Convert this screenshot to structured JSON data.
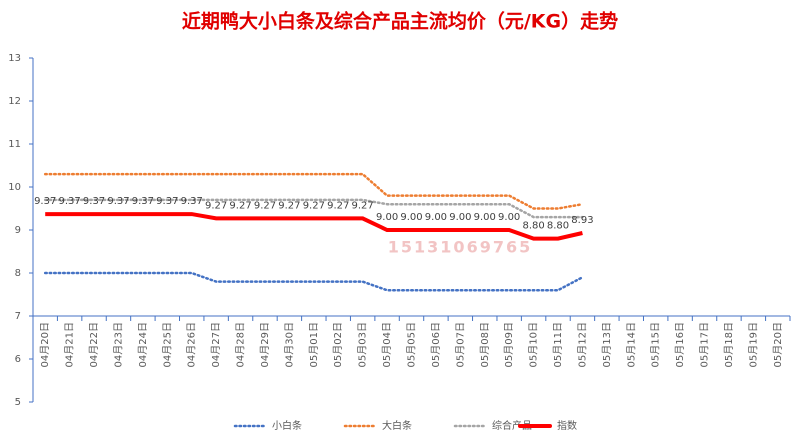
{
  "chart_data": {
    "type": "line",
    "title": "近期鸭大小白条及综合产品主流均价（元/KG）走势",
    "watermark": "15131069765",
    "categories": [
      "04月20日",
      "04月21日",
      "04月22日",
      "04月23日",
      "04月24日",
      "04月25日",
      "04月26日",
      "04月27日",
      "04月28日",
      "04月29日",
      "04月30日",
      "05月01日",
      "05月02日",
      "05月03日",
      "05月04日",
      "05月05日",
      "05月06日",
      "05月07日",
      "05月08日",
      "05月09日",
      "05月10日",
      "05月11日",
      "05月12日",
      "05月13日",
      "05月14日",
      "05月15日",
      "05月16日",
      "05月17日",
      "05月18日",
      "05月19日",
      "05月20日"
    ],
    "ylim": [
      5,
      13
    ],
    "yticks": [
      5,
      6,
      7,
      8,
      9,
      10,
      11,
      12,
      13
    ],
    "xaxis_at": 7,
    "grid": false,
    "legend": "bottom",
    "series": [
      {
        "name": "小白条",
        "color": "#4472c4",
        "style": "dotted",
        "values": [
          8,
          8,
          8,
          8,
          8,
          8,
          8,
          7.8,
          7.8,
          7.8,
          7.8,
          7.8,
          7.8,
          7.8,
          7.6,
          7.6,
          7.6,
          7.6,
          7.6,
          7.6,
          7.6,
          7.6,
          7.9,
          null,
          null,
          null,
          null,
          null,
          null,
          null,
          null
        ]
      },
      {
        "name": "大白条",
        "color": "#ed7d31",
        "style": "dotted",
        "values": [
          10.3,
          10.3,
          10.3,
          10.3,
          10.3,
          10.3,
          10.3,
          10.3,
          10.3,
          10.3,
          10.3,
          10.3,
          10.3,
          10.3,
          9.8,
          9.8,
          9.8,
          9.8,
          9.8,
          9.8,
          9.5,
          9.5,
          9.6,
          null,
          null,
          null,
          null,
          null,
          null,
          null,
          null
        ]
      },
      {
        "name": "综合产品",
        "color": "#a5a5a5",
        "style": "dotted",
        "values": [
          9.7,
          9.7,
          9.7,
          9.7,
          9.7,
          9.7,
          9.7,
          9.7,
          9.7,
          9.7,
          9.7,
          9.7,
          9.7,
          9.7,
          9.6,
          9.6,
          9.6,
          9.6,
          9.6,
          9.6,
          9.3,
          9.3,
          9.3,
          null,
          null,
          null,
          null,
          null,
          null,
          null,
          null
        ]
      },
      {
        "name": "指数",
        "color": "#ff0000",
        "style": "solid",
        "values": [
          9.37,
          9.37,
          9.37,
          9.37,
          9.37,
          9.37,
          9.37,
          9.27,
          9.27,
          9.27,
          9.27,
          9.27,
          9.27,
          9.27,
          9,
          9,
          9,
          9,
          9,
          9,
          8.8,
          8.8,
          8.93,
          null,
          null,
          null,
          null,
          null,
          null,
          null,
          null
        ],
        "value_labels": [
          "9.37",
          "9.37",
          "9.37",
          "9.37",
          "9.37",
          "9.37",
          "9.37",
          "9.27",
          "9.27",
          "9.27",
          "9.27",
          "9.27",
          "9.27",
          "9.27",
          "9.00",
          "9.00",
          "9.00",
          "9.00",
          "9.00",
          "9.00",
          "8.80",
          "8.80",
          "8.93",
          null,
          null,
          null,
          null,
          null,
          null,
          null,
          null
        ]
      }
    ]
  }
}
